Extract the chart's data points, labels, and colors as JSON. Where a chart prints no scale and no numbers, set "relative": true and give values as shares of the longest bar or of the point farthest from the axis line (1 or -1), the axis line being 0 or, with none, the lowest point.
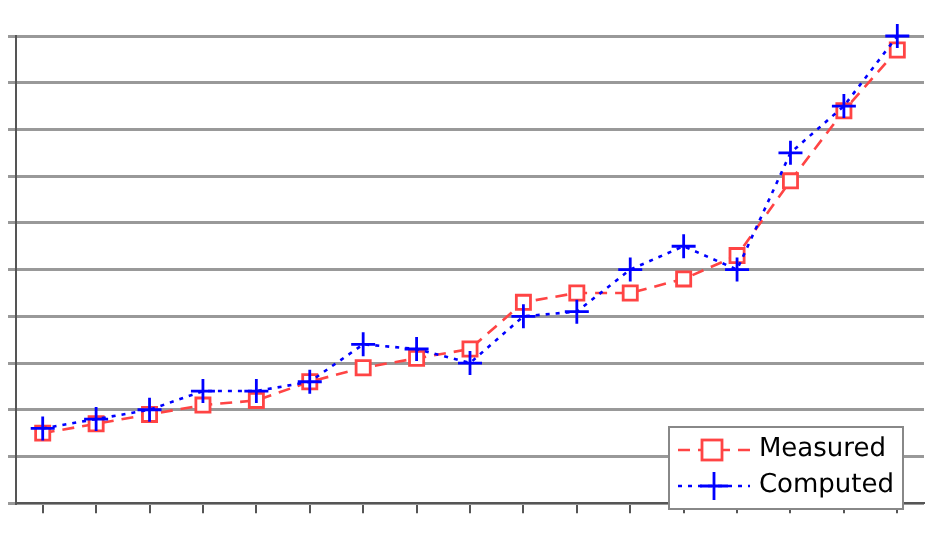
{
  "chart_data": {
    "type": "line",
    "relative": true,
    "categories": [
      null,
      null,
      null,
      null,
      null,
      null,
      null,
      null,
      null,
      null,
      null,
      null,
      null,
      null,
      null,
      null,
      null
    ],
    "series": [
      {
        "name": "Measured",
        "color": "#ff4444",
        "marker": "square",
        "line_style": "dashed",
        "values": [
          0.15,
          0.17,
          0.19,
          0.21,
          0.22,
          0.26,
          0.29,
          0.31,
          0.33,
          0.43,
          0.45,
          0.45,
          0.48,
          0.53,
          0.69,
          0.84,
          0.97
        ]
      },
      {
        "name": "Computed",
        "color": "#0000ff",
        "marker": "cross",
        "line_style": "dotted",
        "values": [
          0.16,
          0.18,
          0.2,
          0.24,
          0.24,
          0.26,
          0.34,
          0.33,
          0.3,
          0.4,
          0.41,
          0.5,
          0.55,
          0.5,
          0.75,
          0.85,
          1
        ]
      }
    ],
    "grid": "y",
    "legend": "bottom right"
  }
}
